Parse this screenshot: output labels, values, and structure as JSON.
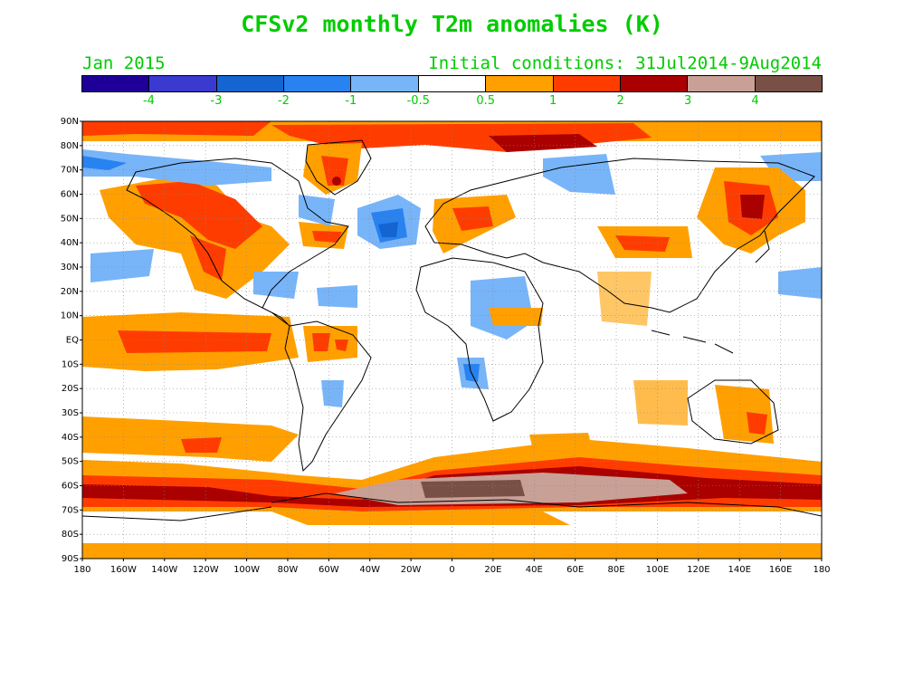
{
  "title": "CFSv2 monthly T2m anomalies (K)",
  "subtitle_left": "Jan 2015",
  "subtitle_right": "Initial conditions: 31Jul2014-9Aug2014",
  "colorbar": {
    "colors": [
      "#1e0098",
      "#3a3ad0",
      "#1464d2",
      "#2882f0",
      "#78b4f8",
      "#ffffff",
      "#ffa000",
      "#ff3c00",
      "#aa0000",
      "#c8a096",
      "#785046"
    ],
    "labels": [
      "-4",
      "-3",
      "-2",
      "-1",
      "-0.5",
      "0.5",
      "1",
      "2",
      "3",
      "4"
    ]
  },
  "map": {
    "lat_labels": [
      "90N",
      "80N",
      "70N",
      "60N",
      "50N",
      "40N",
      "30N",
      "20N",
      "10N",
      "EQ",
      "10S",
      "20S",
      "30S",
      "40S",
      "50S",
      "60S",
      "70S",
      "80S",
      "90S"
    ],
    "lon_labels": [
      "180",
      "160W",
      "140W",
      "120W",
      "100W",
      "80W",
      "60W",
      "40W",
      "20W",
      "0",
      "20E",
      "40E",
      "60E",
      "80E",
      "100E",
      "120E",
      "140E",
      "160E",
      "180"
    ]
  }
}
